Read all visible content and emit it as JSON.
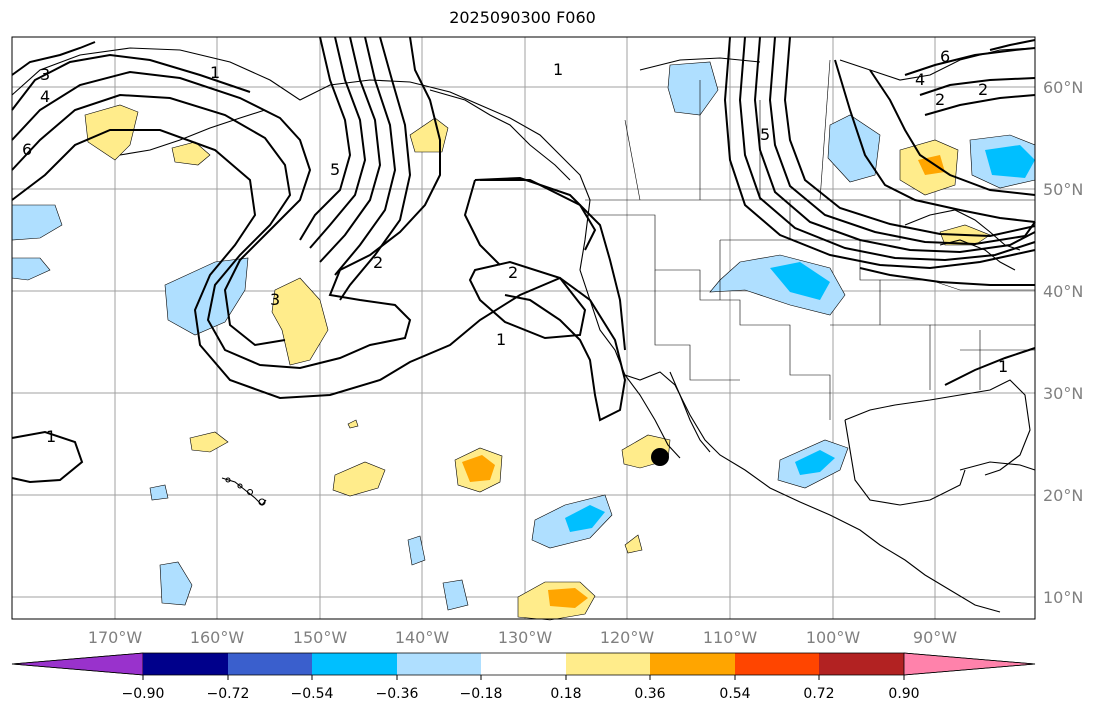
{
  "title": "2025090300 F060",
  "map": {
    "lon_labels": [
      "170°W",
      "160°W",
      "150°W",
      "140°W",
      "130°W",
      "120°W",
      "110°W",
      "100°W",
      "90°W"
    ],
    "lat_labels": [
      "60°N",
      "50°N",
      "40°N",
      "30°N",
      "20°N",
      "10°N"
    ],
    "contour_labels": [
      "1",
      "2",
      "3",
      "4",
      "5",
      "6",
      "1",
      "2",
      "3",
      "2",
      "1",
      "1",
      "2",
      "4",
      "5",
      "6",
      "1"
    ],
    "marker": "black-circle"
  },
  "colorbar": {
    "ticks": [
      "−0.90",
      "−0.72",
      "−0.54",
      "−0.36",
      "−0.18",
      "0.18",
      "0.36",
      "0.54",
      "0.72",
      "0.90"
    ],
    "colors": [
      "#9932cc",
      "#00008b",
      "#3a5fcd",
      "#00bfff",
      "#afdfff",
      "#ffffff",
      "#ffec8b",
      "#ffa500",
      "#ff4500",
      "#b22222",
      "#ff82ab"
    ]
  }
}
